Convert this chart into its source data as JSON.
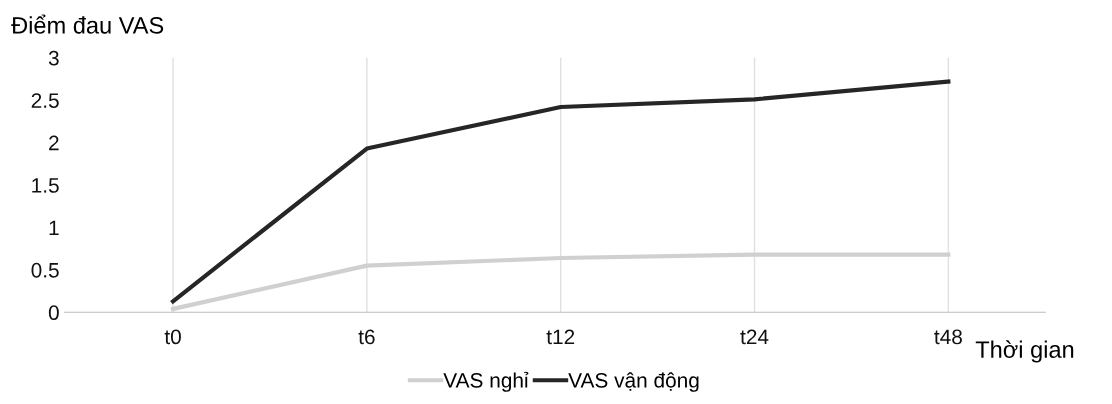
{
  "chart_data": {
    "type": "line",
    "xlabel": "Thời gian",
    "ylabel": "Điểm đau VAS",
    "categories": [
      "t0",
      "t6",
      "t12",
      "t24",
      "t48"
    ],
    "series": [
      {
        "name": "VAS nghỉ",
        "color": "#d0d0d0",
        "values": [
          0.04,
          0.55,
          0.64,
          0.68,
          0.68
        ]
      },
      {
        "name": "VAS vận động",
        "color": "#262626",
        "values": [
          0.13,
          1.93,
          2.42,
          2.51,
          2.72
        ]
      }
    ],
    "ylim": [
      0,
      3
    ],
    "yticks": [
      0,
      0.5,
      1,
      1.5,
      2,
      2.5,
      3
    ],
    "grid": "x",
    "legend": "bottom",
    "marker": "none",
    "line_style": "solid"
  }
}
